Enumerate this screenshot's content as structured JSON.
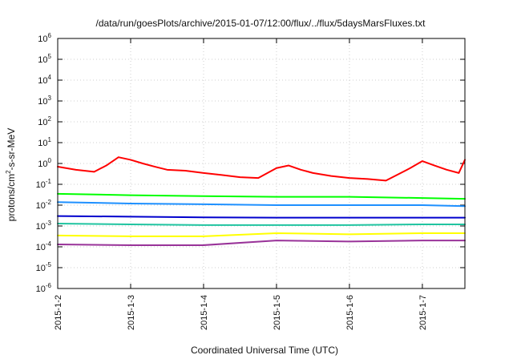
{
  "chart_data": {
    "type": "line",
    "title": "/data/run/goesPlots/archive/2015-01-07/12:00/flux/../flux/5daysMarsFluxes.txt",
    "xlabel": "Coordinated Universal Time (UTC)",
    "ylabel": {
      "prefix": "protons/cm",
      "superscript": "2",
      "suffix": "-s-sr-MeV"
    },
    "ylim": [
      1e-06,
      1000000.0
    ],
    "yscale": "log",
    "grid": true,
    "x_ticks": [
      "2015-1-2",
      "2015-1-3",
      "2015-1-4",
      "2015-1-5",
      "2015-1-6",
      "2015-1-7"
    ],
    "y_ticks": [
      {
        "base": "10",
        "exp": "-6"
      },
      {
        "base": "10",
        "exp": "-5"
      },
      {
        "base": "10",
        "exp": "-4"
      },
      {
        "base": "10",
        "exp": "-3"
      },
      {
        "base": "10",
        "exp": "-2"
      },
      {
        "base": "10",
        "exp": "-1"
      },
      {
        "base": "10",
        "exp": "0"
      },
      {
        "base": "10",
        "exp": "1"
      },
      {
        "base": "10",
        "exp": "2"
      },
      {
        "base": "10",
        "exp": "3"
      },
      {
        "base": "10",
        "exp": "4"
      },
      {
        "base": "10",
        "exp": "5"
      },
      {
        "base": "10",
        "exp": "6"
      }
    ],
    "x_domain": [
      "2015-01-02",
      "2015-01-07T14:00"
    ],
    "series": [
      {
        "color": "#ff0000",
        "x": [
          "2015-01-02T00:00",
          "2015-01-02T06:00",
          "2015-01-02T12:00",
          "2015-01-02T16:00",
          "2015-01-02T20:00",
          "2015-01-03T00:00",
          "2015-01-03T04:00",
          "2015-01-03T08:00",
          "2015-01-03T12:00",
          "2015-01-03T18:00",
          "2015-01-04T00:00",
          "2015-01-04T06:00",
          "2015-01-04T12:00",
          "2015-01-04T18:00",
          "2015-01-05T00:00",
          "2015-01-05T04:00",
          "2015-01-05T08:00",
          "2015-01-05T12:00",
          "2015-01-05T18:00",
          "2015-01-06T00:00",
          "2015-01-06T06:00",
          "2015-01-06T12:00",
          "2015-01-06T16:00",
          "2015-01-06T20:00",
          "2015-01-07T00:00",
          "2015-01-07T04:00",
          "2015-01-07T08:00",
          "2015-01-07T12:00",
          "2015-01-07T14:00"
        ],
        "y": [
          0.7,
          0.5,
          0.4,
          0.8,
          2.0,
          1.5,
          1.0,
          0.7,
          0.5,
          0.45,
          0.35,
          0.28,
          0.22,
          0.2,
          0.6,
          0.8,
          0.5,
          0.35,
          0.25,
          0.2,
          0.18,
          0.15,
          0.3,
          0.6,
          1.3,
          0.8,
          0.5,
          0.35,
          1.5
        ]
      },
      {
        "color": "#00ff00",
        "x": [
          "2015-01-02T00:00",
          "2015-01-03T00:00",
          "2015-01-04T00:00",
          "2015-01-05T00:00",
          "2015-01-06T00:00",
          "2015-01-07T00:00",
          "2015-01-07T14:00"
        ],
        "y": [
          0.035,
          0.03,
          0.027,
          0.025,
          0.025,
          0.022,
          0.02
        ]
      },
      {
        "color": "#1e90ff",
        "x": [
          "2015-01-02T00:00",
          "2015-01-03T00:00",
          "2015-01-04T00:00",
          "2015-01-05T00:00",
          "2015-01-06T00:00",
          "2015-01-07T00:00",
          "2015-01-07T14:00"
        ],
        "y": [
          0.014,
          0.012,
          0.011,
          0.01,
          0.01,
          0.01,
          0.009
        ]
      },
      {
        "color": "#0000cd",
        "x": [
          "2015-01-02T00:00",
          "2015-01-03T00:00",
          "2015-01-04T00:00",
          "2015-01-05T00:00",
          "2015-01-06T00:00",
          "2015-01-07T00:00",
          "2015-01-07T14:00"
        ],
        "y": [
          0.003,
          0.0028,
          0.0026,
          0.0025,
          0.0025,
          0.0025,
          0.0025
        ]
      },
      {
        "color": "#20c4a0",
        "x": [
          "2015-01-02T00:00",
          "2015-01-03T00:00",
          "2015-01-04T00:00",
          "2015-01-05T00:00",
          "2015-01-06T00:00",
          "2015-01-07T00:00",
          "2015-01-07T14:00"
        ],
        "y": [
          0.0013,
          0.0012,
          0.0011,
          0.0011,
          0.0011,
          0.0012,
          0.0012
        ]
      },
      {
        "color": "#ffff00",
        "x": [
          "2015-01-02T00:00",
          "2015-01-03T00:00",
          "2015-01-04T00:00",
          "2015-01-05T00:00",
          "2015-01-06T00:00",
          "2015-01-07T00:00",
          "2015-01-07T14:00"
        ],
        "y": [
          0.00035,
          0.00032,
          0.00032,
          0.00045,
          0.0004,
          0.00045,
          0.00045
        ]
      },
      {
        "color": "#993399",
        "x": [
          "2015-01-02T00:00",
          "2015-01-03T00:00",
          "2015-01-04T00:00",
          "2015-01-05T00:00",
          "2015-01-06T00:00",
          "2015-01-07T00:00",
          "2015-01-07T14:00"
        ],
        "y": [
          0.00013,
          0.00012,
          0.00012,
          0.0002,
          0.00018,
          0.0002,
          0.0002
        ]
      }
    ]
  }
}
